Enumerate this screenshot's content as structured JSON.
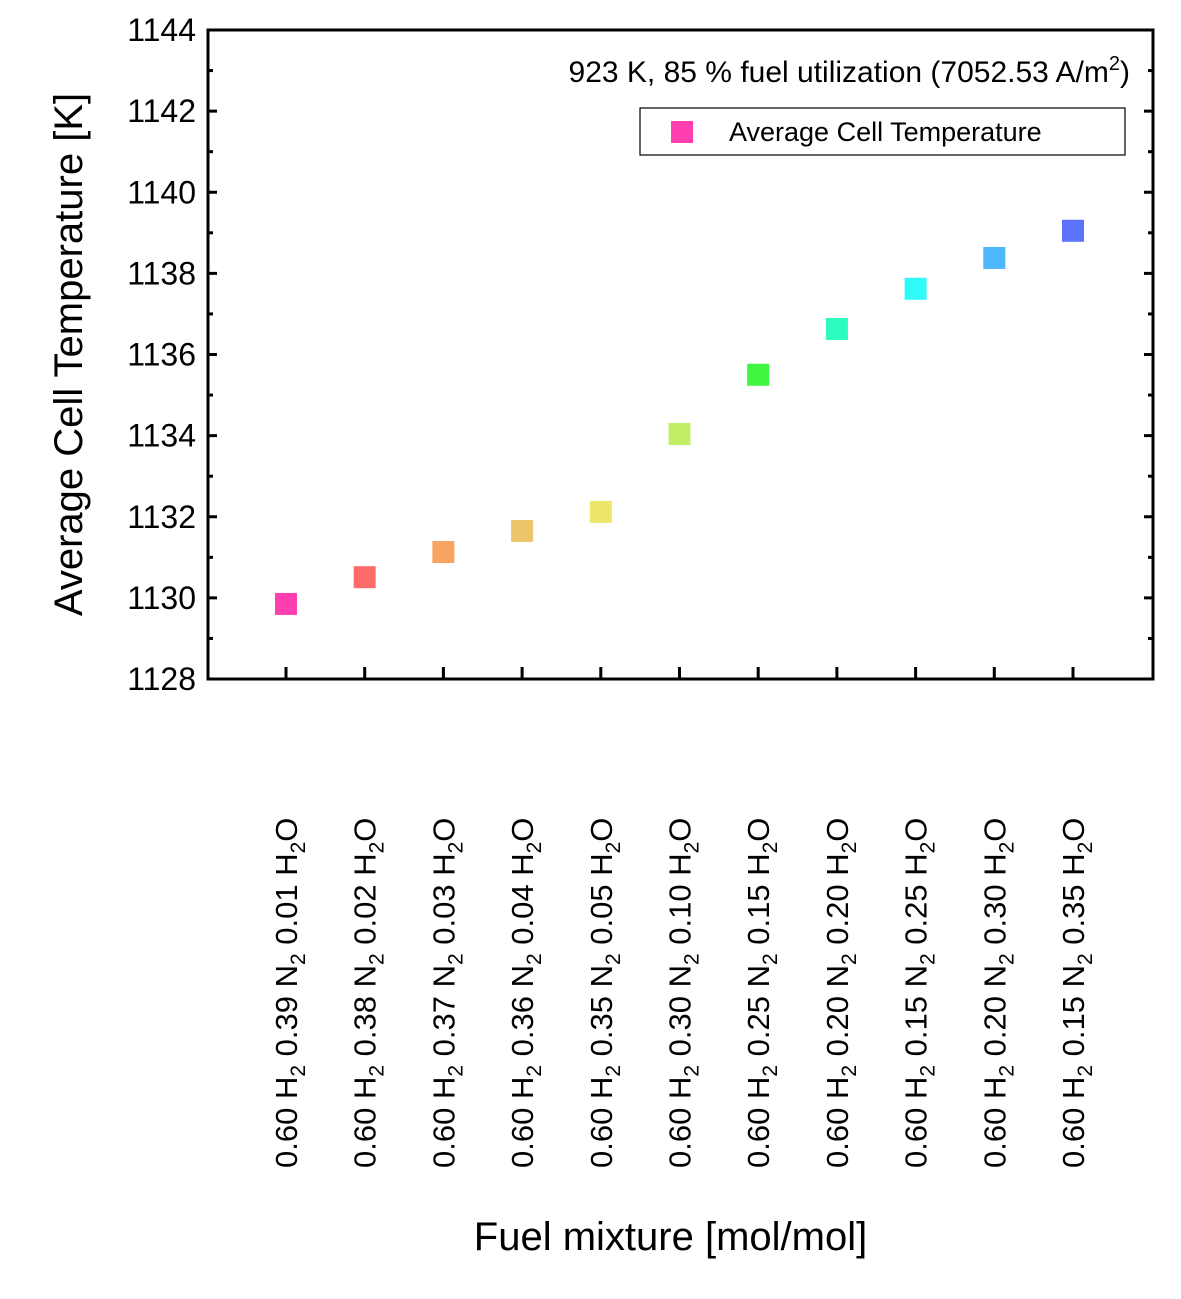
{
  "chart_data": {
    "type": "scatter",
    "title": "",
    "annotation": {
      "text": "923 K, 85 % fuel utilization (7052.53 A/m",
      "superscript": "2",
      "suffix": ")"
    },
    "xlabel": "Fuel mixture [mol/mol]",
    "ylabel": "Average Cell Temperature [K]",
    "ylim": [
      1128,
      1144
    ],
    "yticks": [
      1128,
      1130,
      1132,
      1134,
      1136,
      1138,
      1140,
      1142,
      1144
    ],
    "y_minor_step": 1,
    "grid": false,
    "legend": {
      "position": "top-right",
      "entries": [
        {
          "label": "Average Cell Temperature",
          "color": "#ff3fb0",
          "marker": "square"
        }
      ]
    },
    "categories": [
      [
        {
          "t": "0.60 H"
        },
        {
          "s": "2"
        },
        {
          "t": " 0.39 N"
        },
        {
          "s": "2"
        },
        {
          "t": " 0.01 H"
        },
        {
          "s": "2"
        },
        {
          "t": "O"
        }
      ],
      [
        {
          "t": "0.60 H"
        },
        {
          "s": "2"
        },
        {
          "t": " 0.38 N"
        },
        {
          "s": "2"
        },
        {
          "t": " 0.02 H"
        },
        {
          "s": "2"
        },
        {
          "t": "O"
        }
      ],
      [
        {
          "t": "0.60 H"
        },
        {
          "s": "2"
        },
        {
          "t": " 0.37 N"
        },
        {
          "s": "2"
        },
        {
          "t": " 0.03 H"
        },
        {
          "s": "2"
        },
        {
          "t": "O"
        }
      ],
      [
        {
          "t": "0.60 H"
        },
        {
          "s": "2"
        },
        {
          "t": " 0.36 N"
        },
        {
          "s": "2"
        },
        {
          "t": " 0.04 H"
        },
        {
          "s": "2"
        },
        {
          "t": "O"
        }
      ],
      [
        {
          "t": "0.60 H"
        },
        {
          "s": "2"
        },
        {
          "t": " 0.35 N"
        },
        {
          "s": "2"
        },
        {
          "t": " 0.05 H"
        },
        {
          "s": "2"
        },
        {
          "t": "O"
        }
      ],
      [
        {
          "t": "0.60 H"
        },
        {
          "s": "2"
        },
        {
          "t": " 0.30 N"
        },
        {
          "s": "2"
        },
        {
          "t": " 0.10 H"
        },
        {
          "s": "2"
        },
        {
          "t": "O"
        }
      ],
      [
        {
          "t": "0.60 H"
        },
        {
          "s": "2"
        },
        {
          "t": " 0.25 N"
        },
        {
          "s": "2"
        },
        {
          "t": " 0.15 H"
        },
        {
          "s": "2"
        },
        {
          "t": "O"
        }
      ],
      [
        {
          "t": "0.60 H"
        },
        {
          "s": "2"
        },
        {
          "t": " 0.20 N"
        },
        {
          "s": "2"
        },
        {
          "t": " 0.20 H"
        },
        {
          "s": "2"
        },
        {
          "t": "O"
        }
      ],
      [
        {
          "t": "0.60 H"
        },
        {
          "s": "2"
        },
        {
          "t": " 0.15 N"
        },
        {
          "s": "2"
        },
        {
          "t": " 0.25 H"
        },
        {
          "s": "2"
        },
        {
          "t": "O"
        }
      ],
      [
        {
          "t": "0.60 H"
        },
        {
          "s": "2"
        },
        {
          "t": " 0.20 N"
        },
        {
          "s": "2"
        },
        {
          "t": " 0.30 H"
        },
        {
          "s": "2"
        },
        {
          "t": "O"
        }
      ],
      [
        {
          "t": "0.60 H"
        },
        {
          "s": "2"
        },
        {
          "t": " 0.15 N"
        },
        {
          "s": "2"
        },
        {
          "t": " 0.35 H"
        },
        {
          "s": "2"
        },
        {
          "t": "O"
        }
      ]
    ],
    "series": [
      {
        "name": "Average Cell Temperature",
        "values": [
          1129.85,
          1130.51,
          1131.13,
          1131.65,
          1132.12,
          1134.04,
          1135.5,
          1136.63,
          1137.62,
          1138.38,
          1139.05
        ],
        "colors": [
          "#ff3fb0",
          "#ff6b6b",
          "#f7a462",
          "#edc46c",
          "#ece66a",
          "#c1ee66",
          "#3ef73e",
          "#2dfcbe",
          "#30fbfb",
          "#4db8fb",
          "#5a72fc"
        ]
      }
    ]
  }
}
